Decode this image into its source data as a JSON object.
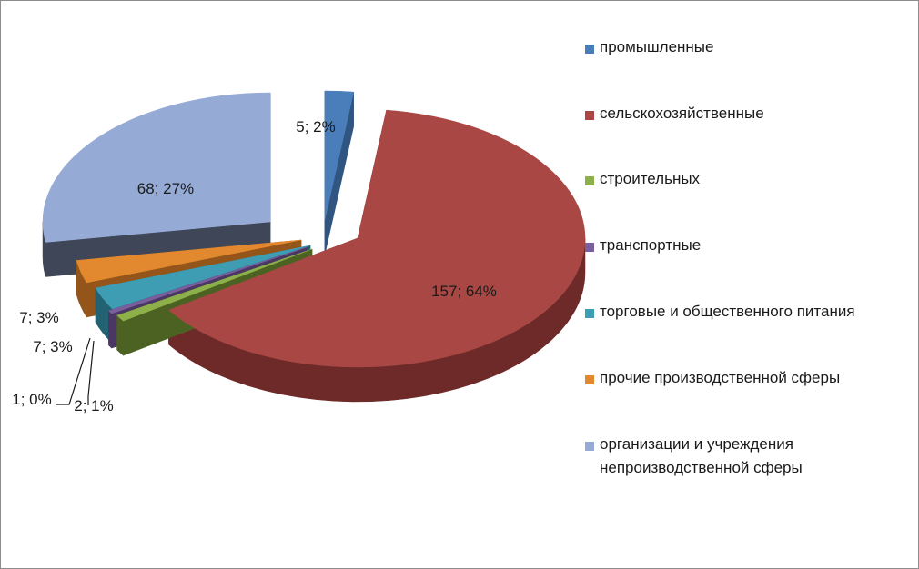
{
  "chart_data": {
    "type": "pie",
    "style": "3d-exploded",
    "series": [
      {
        "name": "промышленные",
        "value": 5,
        "percent": 2,
        "label": "5; 2%",
        "color": "#4a7ebb",
        "side": "#2f5580"
      },
      {
        "name": "сельскохозяйственные",
        "value": 157,
        "percent": 64,
        "label": "157; 64%",
        "color": "#a84744",
        "side": "#6e2a28"
      },
      {
        "name": "строительных",
        "value": 2,
        "percent": 1,
        "label": "2; 1%",
        "color": "#8db04a",
        "side": "#4c6223"
      },
      {
        "name": "транспортные",
        "value": 1,
        "percent": 0,
        "label": "1; 0%",
        "color": "#7a5f9e",
        "side": "#4b3763"
      },
      {
        "name": "торговые и общественного питания",
        "value": 7,
        "percent": 3,
        "label": "7; 3%",
        "color": "#3f9db3",
        "side": "#226273"
      },
      {
        "name": "прочие производственной сферы",
        "value": 7,
        "percent": 3,
        "label": "7; 3%",
        "color": "#e2892f",
        "side": "#93551a"
      },
      {
        "name": "организации и учреждения непроизводственной сферы",
        "value": 68,
        "percent": 27,
        "label": "68; 27%",
        "color": "#95abd6",
        "side": "#3e4658"
      }
    ],
    "legend_position": "right"
  }
}
